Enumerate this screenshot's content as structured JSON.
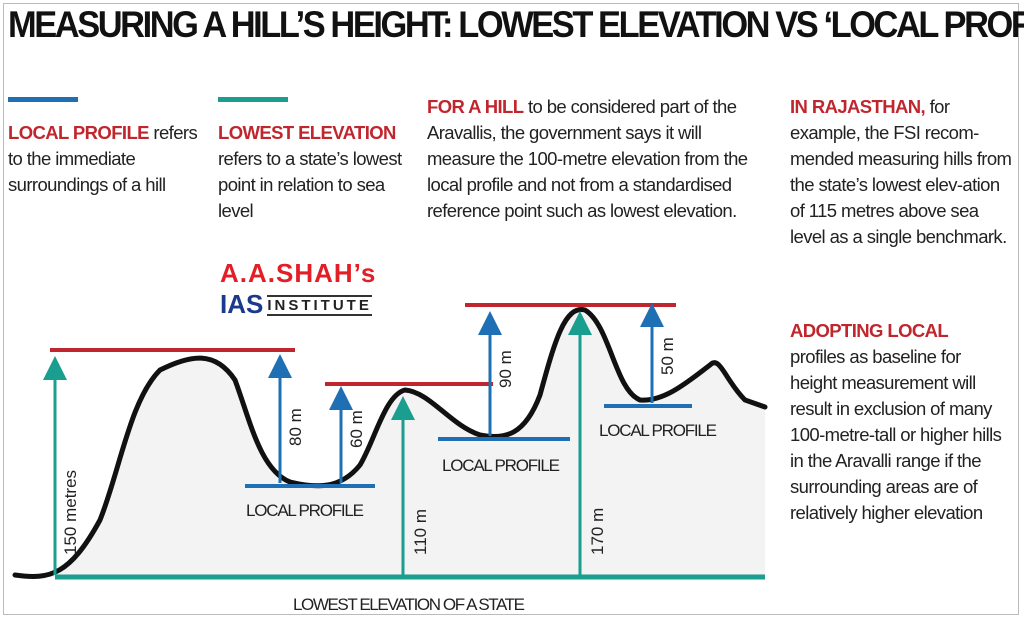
{
  "title": "MEASURING A HILL’S HEIGHT: LOWEST ELEVATION VS ‘LOCAL PROFILE’",
  "colors": {
    "red": "#c0262d",
    "blue": "#1f6fb5",
    "teal": "#1a9e8f",
    "terrain": "#111111"
  },
  "legend": [
    {
      "key": "LOCAL PROFILE",
      "text": " refers to the immediate surroundings of a hill",
      "color": "#1f6fb5"
    },
    {
      "key": "LOWEST ELEVATION",
      "text": " refers to a state’s lowest point in relation to sea level",
      "color": "#1a9e8f"
    }
  ],
  "notes": [
    {
      "key": "FOR A HILL",
      "text": " to be considered part of the Aravallis, the government says it will measure the 100-metre elevation from the local profile and not from a standardised reference point such as lowest elevation."
    },
    {
      "key": "IN RAJASTHAN,",
      "text": " for example, the FSI recom-mended measuring hills from the state’s lowest elev-ation of 115 metres above sea level as a single benchmark."
    },
    {
      "key": "ADOPTING LOCAL",
      "text": " profiles as baseline for height measurement will result in exclusion of many 100-metre-tall or higher hills in the Aravalli range if the surrounding areas are of relatively higher elevation"
    }
  ],
  "logo": {
    "line1": "A.A.SHAH’s",
    "line2": "IAS",
    "line3": "INSTITUTE"
  },
  "diagram": {
    "lowest_label": "LOWEST ELEVATION OF A STATE",
    "local_profile_label": "LOCAL PROFILE",
    "lowest_heights": [
      "150 metres",
      "110 m",
      "170 m"
    ],
    "local_heights": [
      "80 m",
      "60 m",
      "90 m",
      "50 m"
    ]
  }
}
